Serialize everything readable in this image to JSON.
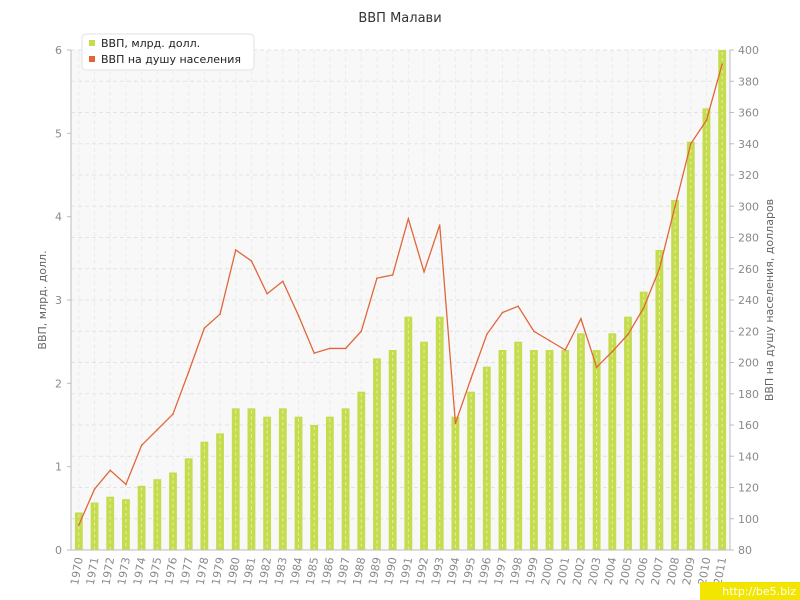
{
  "chart_data": {
    "type": "bar+line",
    "title": "ВВП Малави",
    "categories": [
      "1970",
      "1971",
      "1972",
      "1973",
      "1974",
      "1975",
      "1976",
      "1977",
      "1978",
      "1979",
      "1980",
      "1981",
      "1982",
      "1983",
      "1984",
      "1985",
      "1986",
      "1987",
      "1988",
      "1989",
      "1990",
      "1991",
      "1992",
      "1993",
      "1994",
      "1995",
      "1996",
      "1997",
      "1998",
      "1999",
      "2000",
      "2001",
      "2002",
      "2003",
      "2004",
      "2005",
      "2006",
      "2007",
      "2008",
      "2009",
      "2010",
      "2011"
    ],
    "series": [
      {
        "name": "ВВП, млрд. долл.",
        "type": "bar",
        "axis": "left",
        "color": "#c5dc4f",
        "values": [
          0.45,
          0.57,
          0.64,
          0.61,
          0.77,
          0.85,
          0.93,
          1.1,
          1.3,
          1.4,
          1.7,
          1.7,
          1.6,
          1.7,
          1.6,
          1.5,
          1.6,
          1.7,
          1.9,
          2.3,
          2.4,
          2.8,
          2.5,
          2.8,
          1.6,
          1.9,
          2.2,
          2.4,
          2.5,
          2.4,
          2.4,
          2.4,
          2.6,
          2.4,
          2.6,
          2.8,
          3.1,
          3.6,
          4.2,
          4.9,
          5.3,
          6.0
        ]
      },
      {
        "name": "ВВП на душу населения",
        "type": "line",
        "axis": "right",
        "color": "#e0663a",
        "values": [
          96,
          119,
          131,
          122,
          147,
          157,
          167,
          194,
          222,
          231,
          272,
          265,
          244,
          252,
          230,
          206,
          209,
          209,
          220,
          254,
          256,
          292,
          258,
          288,
          161,
          190,
          218,
          232,
          236,
          220,
          214,
          208,
          228,
          197,
          207,
          218,
          235,
          260,
          300,
          340,
          355,
          391
        ]
      }
    ],
    "ylabel_left": "ВВП, млрд. долл.",
    "ylabel_right": "ВВП на душу населения, долларов",
    "ylim_left": [
      0,
      6
    ],
    "ylim_right": [
      80,
      400
    ],
    "yticks_left": [
      "0",
      "1",
      "2",
      "3",
      "4",
      "5",
      "6"
    ],
    "yticks_right": [
      "80",
      "100",
      "120",
      "140",
      "160",
      "180",
      "200",
      "220",
      "240",
      "260",
      "280",
      "300",
      "320",
      "340",
      "360",
      "380",
      "400"
    ],
    "grid": true,
    "legend_position": "top-left"
  },
  "watermark": "http://be5.biz"
}
